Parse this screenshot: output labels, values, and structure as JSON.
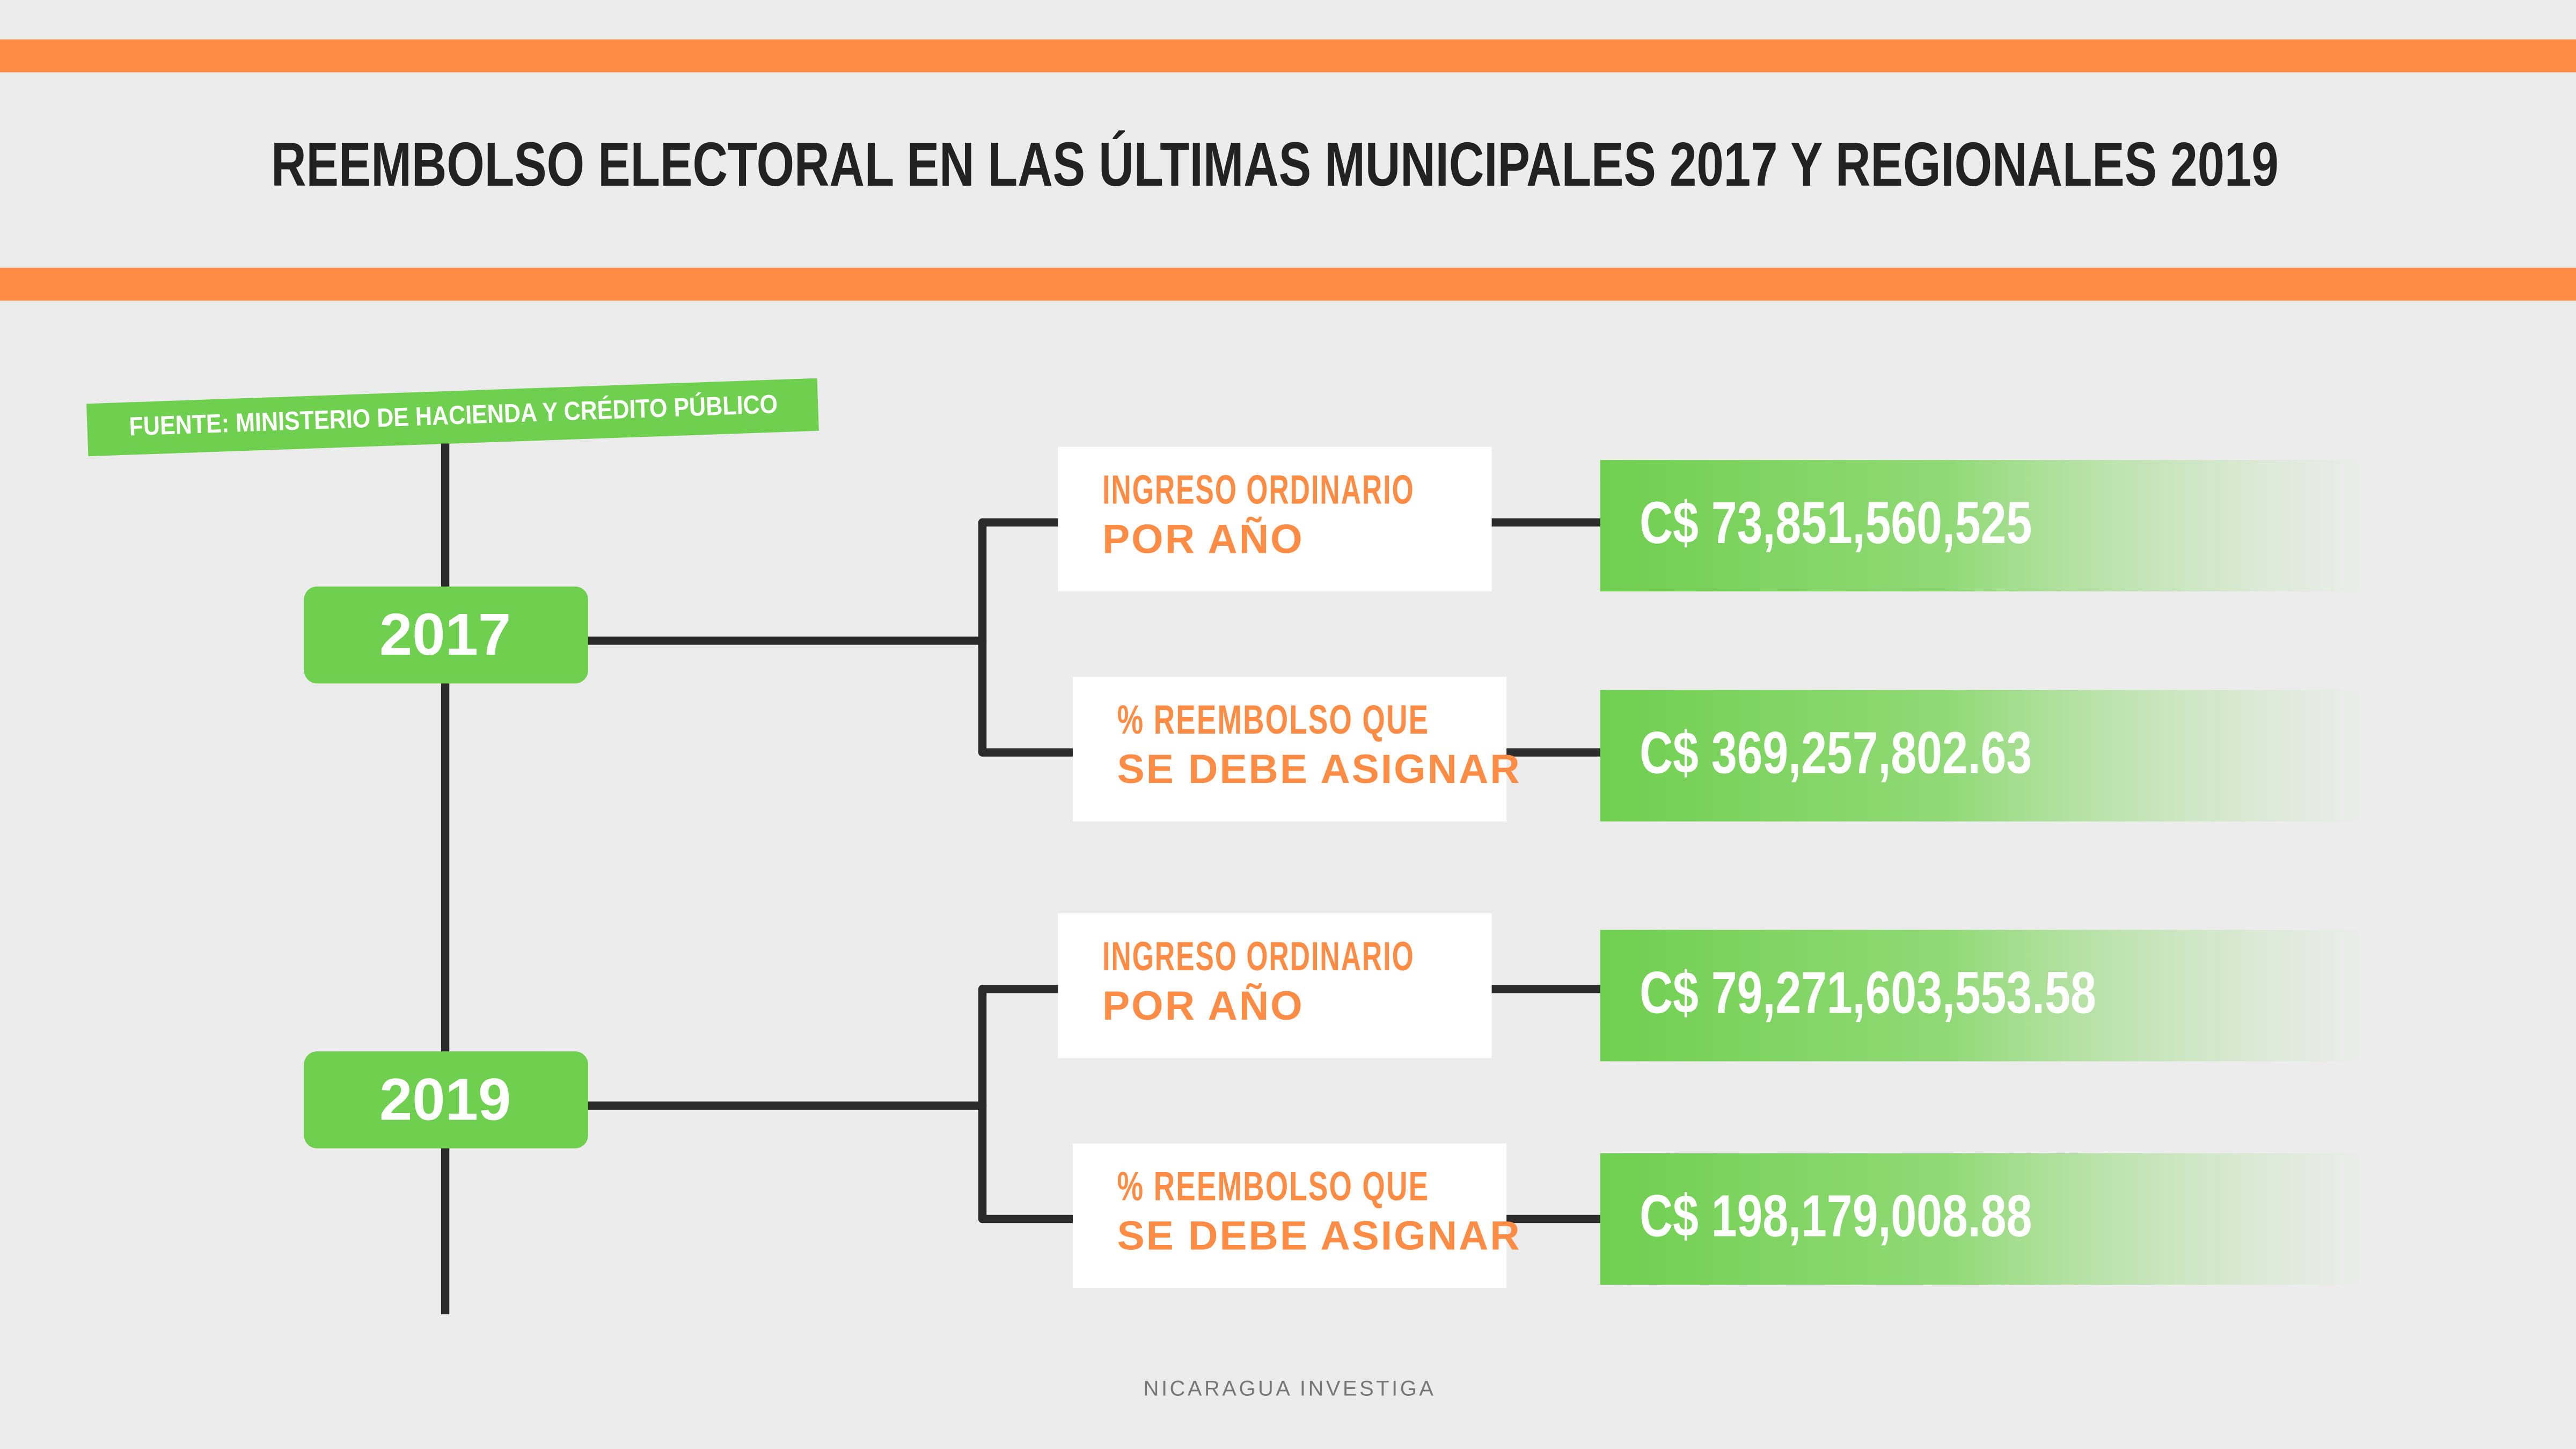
{
  "header": {
    "title": "REEMBOLSO ELECTORAL EN LAS ÚLTIMAS MUNICIPALES 2017 Y REGIONALES 2019"
  },
  "source": "FUENTE: MINISTERIO DE HACIENDA Y CRÉDITO PÚBLICO",
  "years": [
    {
      "label": "2017",
      "items": [
        {
          "lines": [
            "INGRESO ORDINARIO",
            "POR AÑO"
          ],
          "value": "C$ 73,851,560,525"
        },
        {
          "lines": [
            "% REEMBOLSO QUE",
            "SE DEBE ASIGNAR"
          ],
          "value": "C$ 369,257,802.63"
        }
      ]
    },
    {
      "label": "2019",
      "items": [
        {
          "lines": [
            "INGRESO ORDINARIO",
            "POR AÑO"
          ],
          "value": "C$ 79,271,603,553.58"
        },
        {
          "lines": [
            "% REEMBOLSO QUE",
            "SE DEBE ASIGNAR"
          ],
          "value": "C$ 198,179,008.88"
        }
      ]
    }
  ],
  "footer": "NICARAGUA INVESTIGA"
}
